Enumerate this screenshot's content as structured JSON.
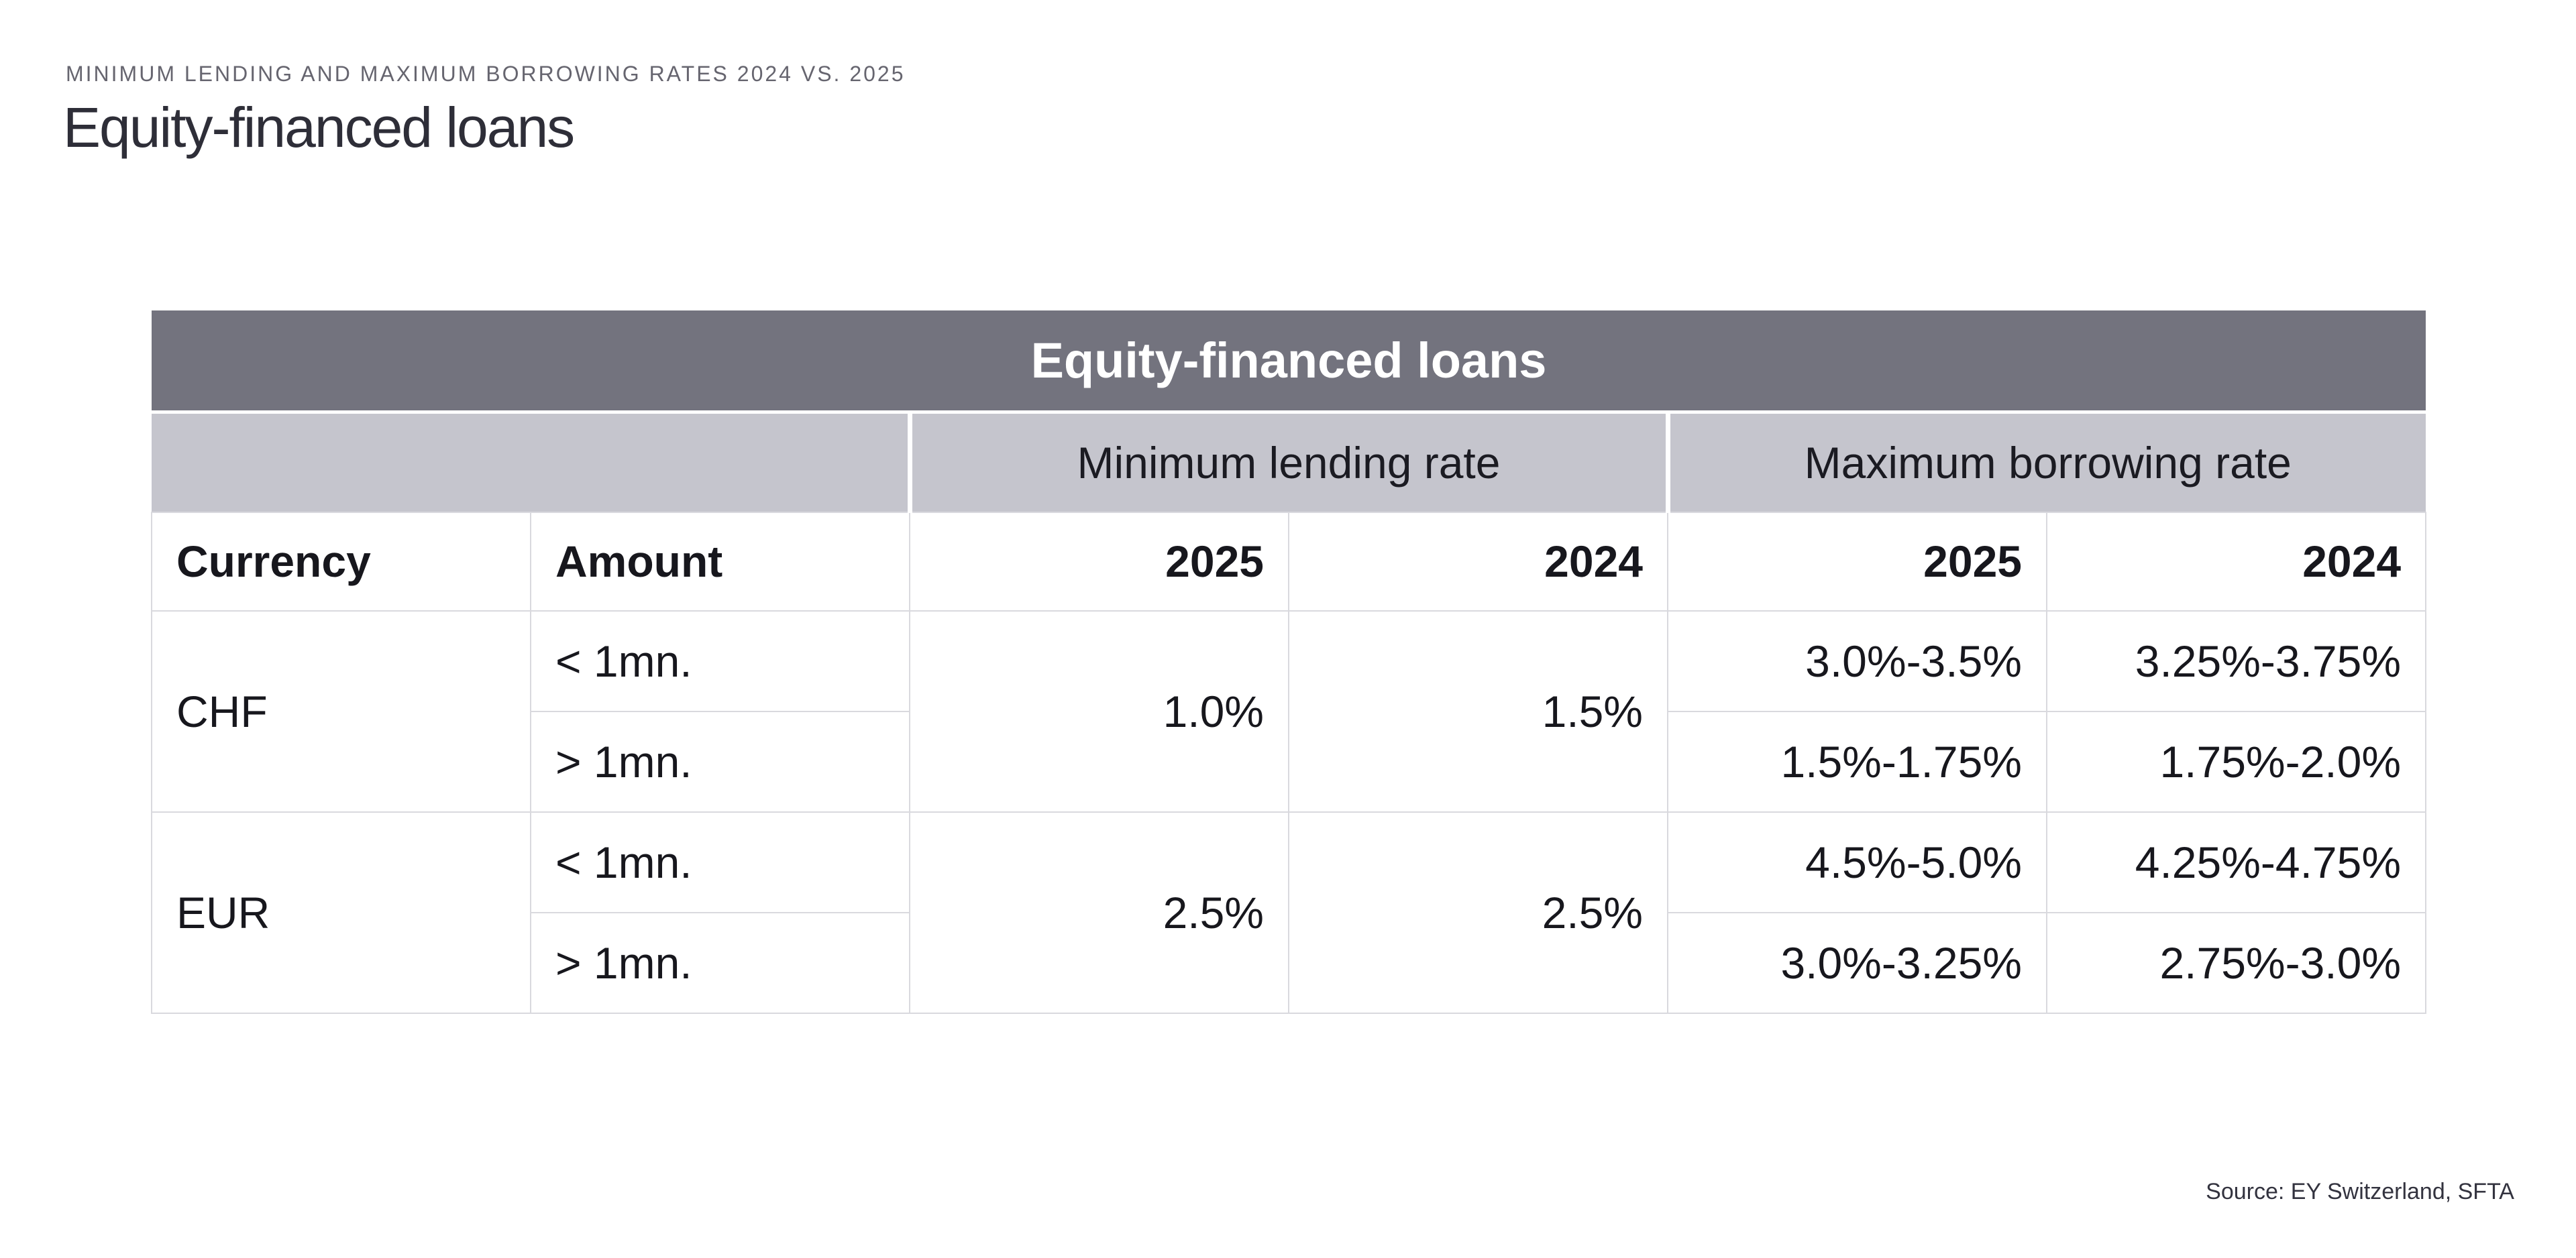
{
  "page": {
    "eyebrow": "MINIMUM LENDING AND MAXIMUM BORROWING RATES 2024 VS. 2025",
    "title": "Equity-financed loans",
    "source": "Source: EY Switzerland, SFTA"
  },
  "table": {
    "title": "Equity-financed loans",
    "groups": {
      "min": "Minimum lending rate",
      "max": "Maximum borrowing rate"
    },
    "headers": {
      "currency": "Currency",
      "amount": "Amount",
      "min_2025": "2025",
      "min_2024": "2024",
      "max_2025": "2025",
      "max_2024": "2024"
    },
    "chf": {
      "code": "CHF",
      "amount_lt": "< 1mn.",
      "amount_gt": "> 1mn.",
      "min_2025": "1.0%",
      "min_2024": "1.5%",
      "lt_max_2025": "3.0%-3.5%",
      "lt_max_2024": "3.25%-3.75%",
      "gt_max_2025": "1.5%-1.75%",
      "gt_max_2024": "1.75%-2.0%"
    },
    "eur": {
      "code": "EUR",
      "amount_lt": "< 1mn.",
      "amount_gt": "> 1mn.",
      "min_2025": "2.5%",
      "min_2024": "2.5%",
      "lt_max_2025": "4.5%-5.0%",
      "lt_max_2024": "4.25%-4.75%",
      "gt_max_2025": "3.0%-3.25%",
      "gt_max_2024": "2.75%-3.0%"
    }
  },
  "colors": {
    "title_bar_bg": "#73737e",
    "title_bar_text": "#ffffff",
    "group_header_bg": "#c5c5cd",
    "cell_border": "#d9d9de",
    "body_text": "#17171d",
    "eyebrow_text": "#66656f",
    "page_title_text": "#2e2e38"
  },
  "chart_data": {
    "type": "table",
    "title": "Equity-financed loans",
    "subtitle": "MINIMUM LENDING AND MAXIMUM BORROWING RATES 2024 VS. 2025",
    "column_groups": [
      "",
      "Minimum lending rate",
      "Maximum borrowing rate"
    ],
    "columns": [
      "Currency",
      "Amount",
      "Minimum lending rate 2025",
      "Minimum lending rate 2024",
      "Maximum borrowing rate 2025",
      "Maximum borrowing rate 2024"
    ],
    "rows": [
      [
        "CHF",
        "< 1mn.",
        "1.0%",
        "1.5%",
        "3.0%-3.5%",
        "3.25%-3.75%"
      ],
      [
        "CHF",
        "> 1mn.",
        "1.0%",
        "1.5%",
        "1.5%-1.75%",
        "1.75%-2.0%"
      ],
      [
        "EUR",
        "< 1mn.",
        "2.5%",
        "2.5%",
        "4.5%-5.0%",
        "4.25%-4.75%"
      ],
      [
        "EUR",
        "> 1mn.",
        "2.5%",
        "2.5%",
        "3.0%-3.25%",
        "2.75%-3.0%"
      ]
    ],
    "source": "Source: EY Switzerland, SFTA",
    "layout": {
      "grid": true,
      "merged_cells": "currency and minimum lending rate values span both amount sub-rows"
    }
  }
}
